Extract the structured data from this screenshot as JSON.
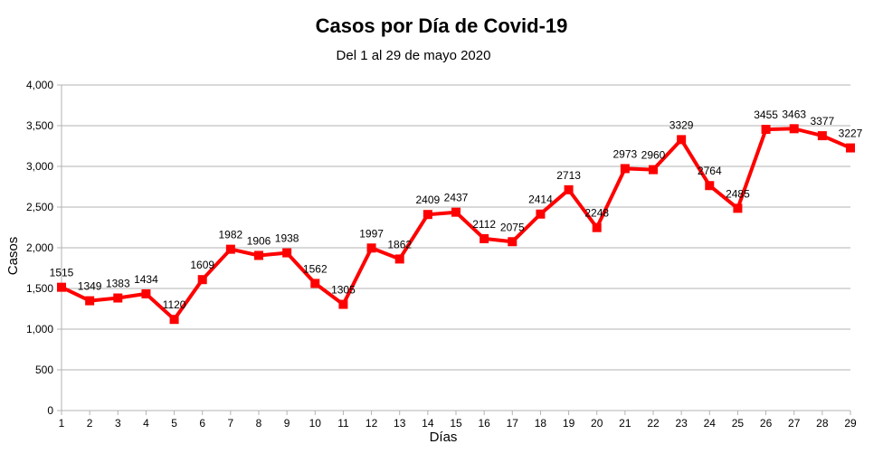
{
  "chart_data": {
    "type": "line",
    "title": "Casos por Día de Covid-19",
    "subtitle": "Del 1 al 29 de mayo 2020",
    "xlabel": "Días",
    "ylabel": "Casos",
    "ylim": [
      0,
      4000
    ],
    "yticks": [
      0,
      500,
      1000,
      1500,
      2000,
      2500,
      3000,
      3500,
      4000
    ],
    "ytick_labels": [
      "0",
      "500",
      "1,000",
      "1,500",
      "2,000",
      "2,500",
      "3,000",
      "3,500",
      "4,000"
    ],
    "grid": "horizontal",
    "legend": "none",
    "color": "#ff0000",
    "x": [
      "1",
      "2",
      "3",
      "4",
      "5",
      "6",
      "7",
      "8",
      "9",
      "10",
      "11",
      "12",
      "13",
      "14",
      "15",
      "16",
      "17",
      "18",
      "19",
      "20",
      "21",
      "22",
      "23",
      "24",
      "25",
      "26",
      "27",
      "28",
      "29"
    ],
    "values": [
      1515,
      1349,
      1383,
      1434,
      1120,
      1609,
      1982,
      1906,
      1938,
      1562,
      1305,
      1997,
      1862,
      2409,
      2437,
      2112,
      2075,
      2414,
      2713,
      2248,
      2973,
      2960,
      3329,
      2764,
      2485,
      3455,
      3463,
      3377,
      3227
    ]
  }
}
